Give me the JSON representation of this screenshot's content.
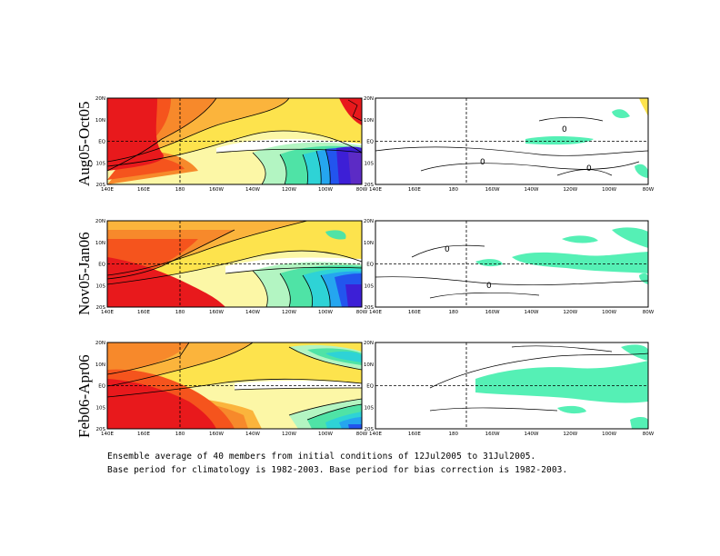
{
  "row_labels": [
    "Aug05-Oct05",
    "Nov05-Jan06",
    "Feb06-Apr06"
  ],
  "lon_labels": [
    "140E",
    "160E",
    "180",
    "160W",
    "140W",
    "120W",
    "100W",
    "80W"
  ],
  "lat_labels": [
    "20N",
    "10N",
    "EQ",
    "10S",
    "20S"
  ],
  "contour_labels": {
    "row1": [
      "0",
      "0",
      "0",
      "0"
    ],
    "row2": [
      "0",
      "0"
    ]
  },
  "footnote": {
    "line1": "Ensemble average of 40 members from initial conditions of 12Jul2005 to 31Jul2005.",
    "line2": "Base period for climatology is 1982-2003. Base period for bias correction is 1982-2003."
  },
  "colors": {
    "red": "#e8191c",
    "orange_red": "#f5541d",
    "orange": "#f7892b",
    "light_orange": "#fbb43c",
    "yellow": "#fde34d",
    "pale_yellow": "#fcf7a6",
    "white": "#ffffff",
    "pale_green": "#b3f5c2",
    "green": "#4fe3a6",
    "cyan": "#2ed3d6",
    "light_blue": "#25a6ef",
    "blue": "#2255ee",
    "dark_blue": "#3d1fd6",
    "purple": "#5c2bc5",
    "anomaly_green": "#55f0b5"
  }
}
